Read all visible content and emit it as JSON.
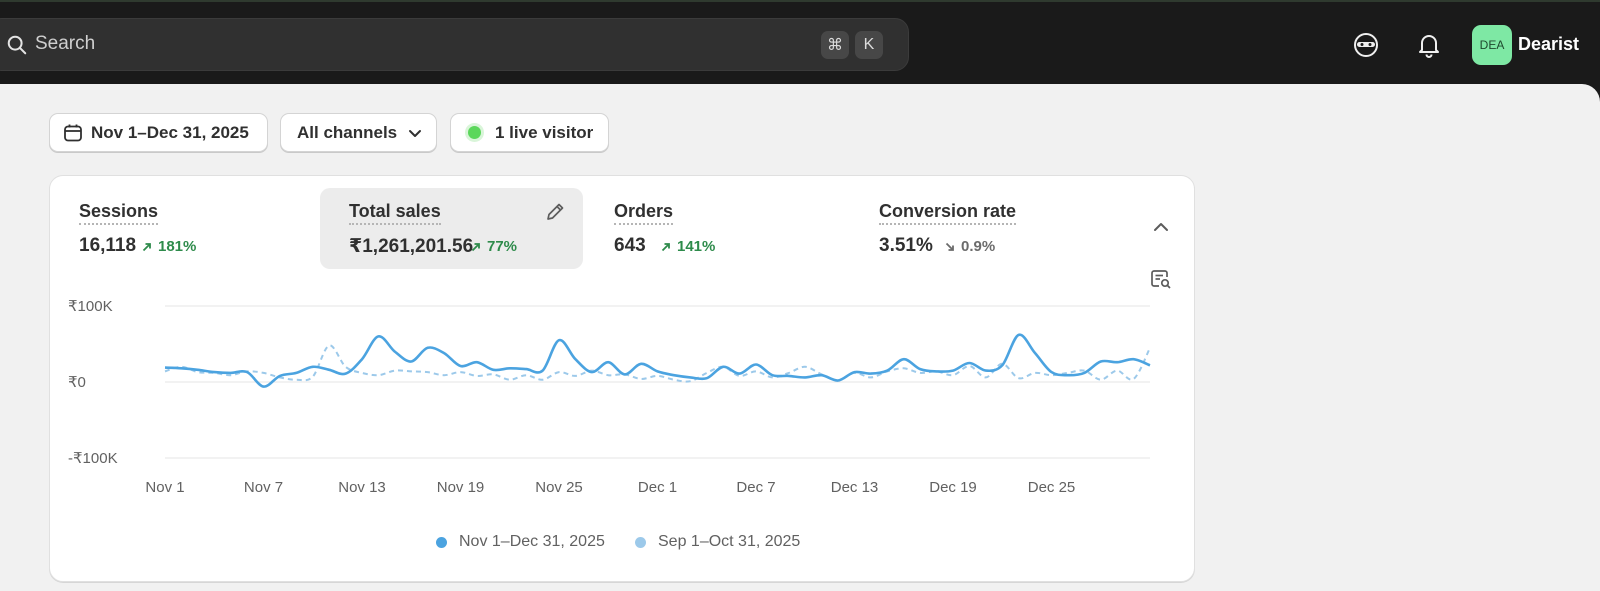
{
  "topbar": {
    "search_placeholder": "Search",
    "shortcut_cmd": "⌘",
    "shortcut_key": "K",
    "avatar_initials": "DEA",
    "store_name": "Dearist"
  },
  "filters": {
    "date_range": "Nov 1–Dec 31, 2025",
    "channels": "All channels",
    "live_visitors": "1 live visitor"
  },
  "metrics": [
    {
      "label": "Sessions",
      "value": "16,118",
      "change": "181%",
      "direction": "up"
    },
    {
      "label": "Total sales",
      "value": "₹1,261,201.56",
      "change": "77%",
      "direction": "up"
    },
    {
      "label": "Orders",
      "value": "643",
      "change": "141%",
      "direction": "up"
    },
    {
      "label": "Conversion rate",
      "value": "3.51%",
      "change": "0.9%",
      "direction": "down"
    }
  ],
  "colors": {
    "current_series": "#4ba3e0",
    "previous_series": "#9cc9ea",
    "up": "#2e8b4b",
    "avatar": "#7ee8a4"
  },
  "chart_data": {
    "type": "line",
    "ytick_labels": [
      "₹100K",
      "₹0",
      "-₹100K"
    ],
    "yticks": [
      100000,
      0,
      -100000
    ],
    "ylim": [
      -100000,
      100000
    ],
    "xtick_labels": [
      "Nov 1",
      "Nov 7",
      "Nov 13",
      "Nov 19",
      "Nov 25",
      "Dec 1",
      "Dec 7",
      "Dec 13",
      "Dec 19",
      "Dec 25"
    ],
    "xtick_indices": [
      0,
      6,
      12,
      18,
      24,
      30,
      36,
      42,
      48,
      54
    ],
    "grid": true,
    "legend_position": "bottom-center",
    "series": [
      {
        "name": "Nov 1–Dec 31, 2025",
        "style": "solid",
        "values": [
          19000,
          18000,
          16000,
          13000,
          12000,
          13000,
          -6000,
          8000,
          12000,
          20000,
          16000,
          11000,
          30000,
          60000,
          40000,
          27000,
          45000,
          38000,
          21000,
          26000,
          16000,
          18000,
          17000,
          15000,
          55000,
          30000,
          13000,
          26000,
          10000,
          24000,
          14000,
          9000,
          6000,
          5000,
          20000,
          11000,
          23000,
          9000,
          8000,
          6000,
          9000,
          2000,
          13000,
          11000,
          15000,
          30000,
          17000,
          14000,
          15000,
          25000,
          15000,
          22000,
          62000,
          38000,
          13000,
          9000,
          12000,
          27000,
          26000,
          30000,
          22000
        ]
      },
      {
        "name": "Sep 1–Oct 31, 2025",
        "style": "dashed",
        "values": [
          14000,
          20000,
          13000,
          12000,
          9000,
          14000,
          12000,
          6000,
          3000,
          7000,
          48000,
          20000,
          12000,
          9000,
          15000,
          14000,
          13000,
          9000,
          13000,
          8000,
          10000,
          3000,
          9000,
          3000,
          13000,
          8000,
          15000,
          9000,
          10000,
          4000,
          8000,
          3000,
          1000,
          12000,
          20000,
          8000,
          14000,
          6000,
          12000,
          20000,
          10000,
          2000,
          12000,
          6000,
          14000,
          18000,
          12000,
          14000,
          9000,
          21000,
          6000,
          24000,
          5000,
          12000,
          9000,
          12000,
          15000,
          3000,
          15000,
          4000,
          45000
        ]
      }
    ]
  }
}
